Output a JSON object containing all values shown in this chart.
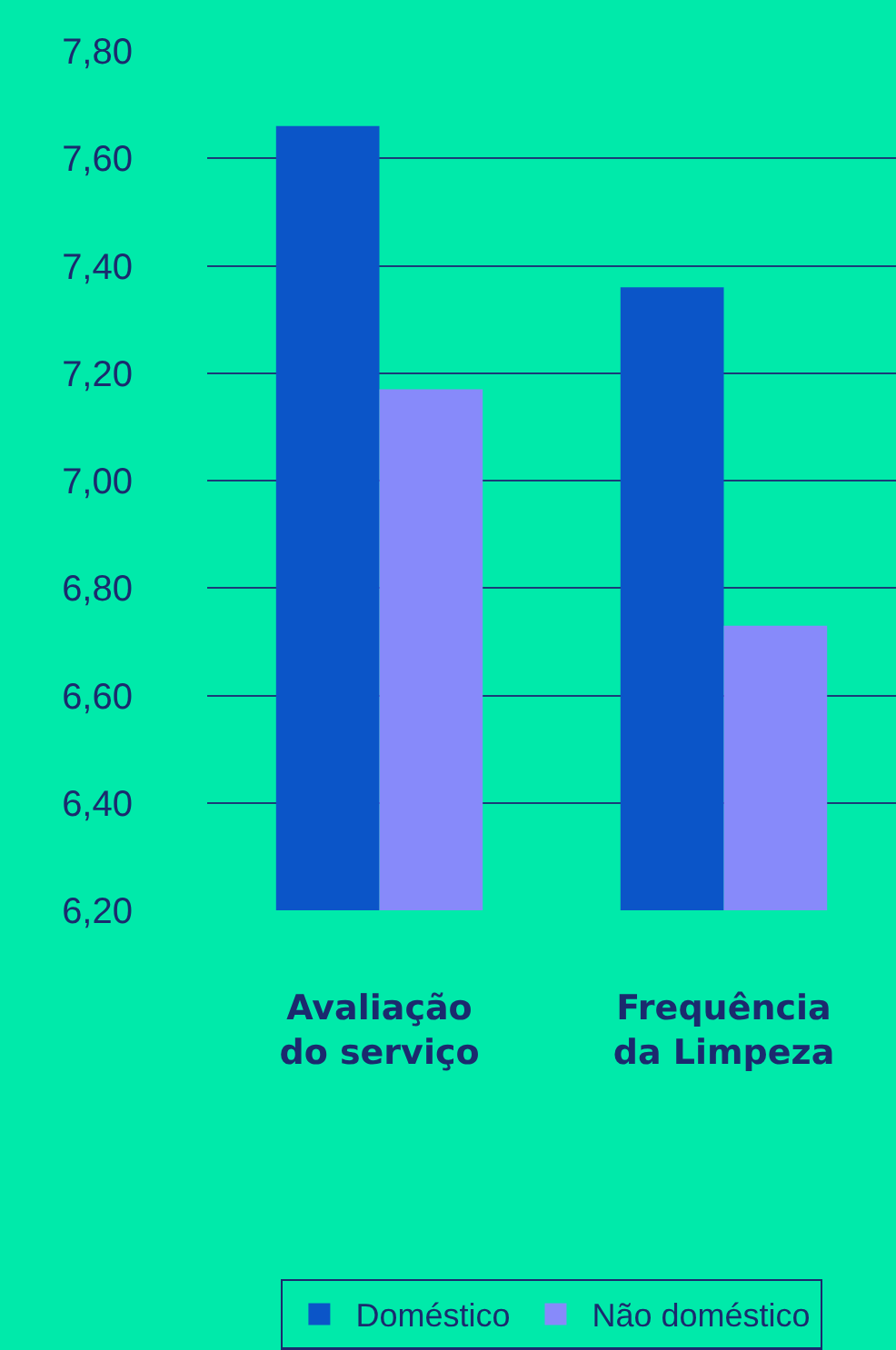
{
  "chart_data": {
    "type": "bar",
    "categories": [
      "Avaliação do serviço",
      "Frequência da Limpeza"
    ],
    "series": [
      {
        "name": "Doméstico",
        "color": "#0b55c8",
        "values": [
          7.66,
          7.36
        ]
      },
      {
        "name": "Não doméstico",
        "color": "#878afa",
        "values": [
          7.17,
          6.73
        ]
      }
    ],
    "ylim": [
      6.2,
      7.8
    ],
    "yticks": [
      {
        "value": 6.2,
        "label": "6,20"
      },
      {
        "value": 6.4,
        "label": "6,40"
      },
      {
        "value": 6.6,
        "label": "6,60"
      },
      {
        "value": 6.8,
        "label": "6,80"
      },
      {
        "value": 7.0,
        "label": "7,00"
      },
      {
        "value": 7.2,
        "label": "7,20"
      },
      {
        "value": 7.4,
        "label": "7,40"
      },
      {
        "value": 7.6,
        "label": "7,60"
      },
      {
        "value": 7.8,
        "label": "7,80"
      }
    ],
    "grid": "y",
    "legend": "bottom"
  }
}
